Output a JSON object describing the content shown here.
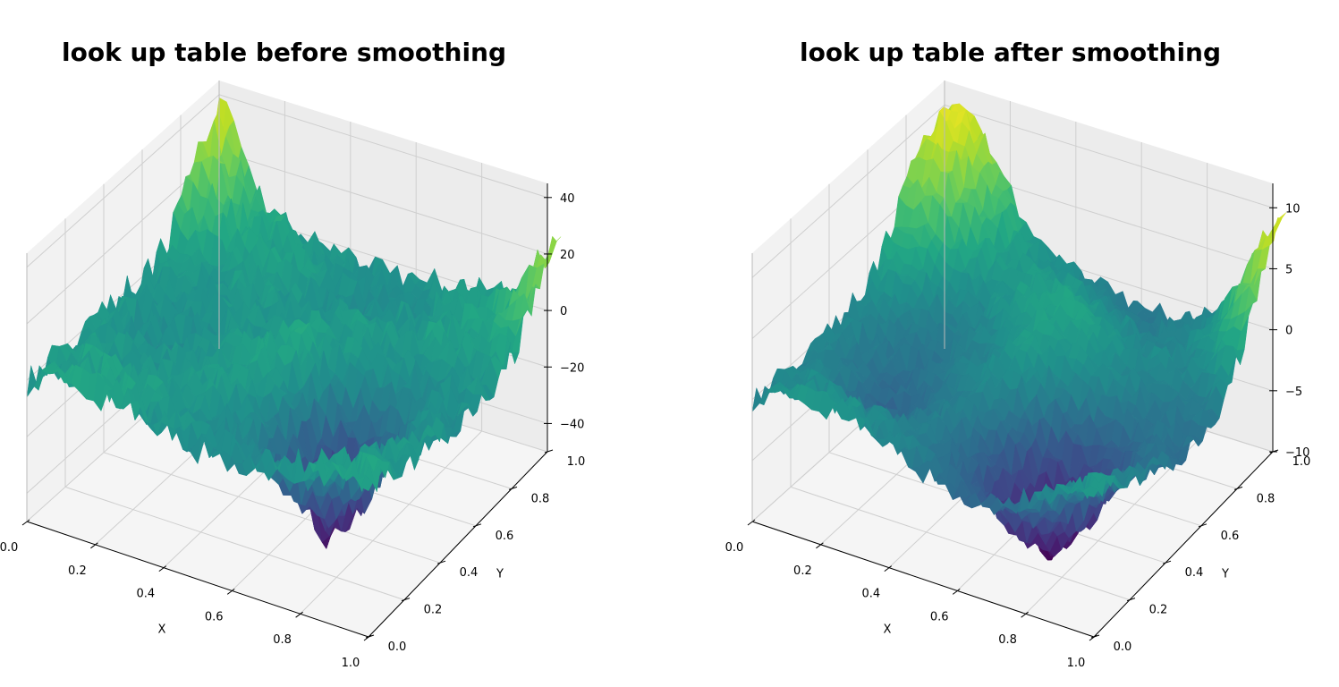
{
  "chart_data": [
    {
      "type": "surface3d",
      "title": "look up table before smoothing",
      "xlabel": "X",
      "ylabel": "Y",
      "zlabel": "",
      "xlim": [
        0,
        1
      ],
      "ylim": [
        0,
        1
      ],
      "zlim": [
        -50,
        45
      ],
      "xticks": [
        "0.0",
        "0.2",
        "0.4",
        "0.6",
        "0.8",
        "1.0"
      ],
      "yticks": [
        "0.0",
        "0.2",
        "0.4",
        "0.6",
        "0.8",
        "1.0"
      ],
      "zticks": [
        "40",
        "20",
        "0",
        "−20",
        "−40"
      ],
      "colormap": "viridis",
      "grid": true,
      "features": [
        {
          "x": 0.0,
          "y": 1.0,
          "z": 38
        },
        {
          "x": 1.0,
          "y": 1.0,
          "z": 30
        },
        {
          "x": 0.7,
          "y": 0.35,
          "z": -45
        },
        {
          "x": 0.5,
          "y": 0.5,
          "z": 0
        }
      ]
    },
    {
      "type": "surface3d",
      "title": "look up table after smoothing",
      "xlabel": "X",
      "ylabel": "Y",
      "zlabel": "",
      "xlim": [
        0,
        1
      ],
      "ylim": [
        0,
        1
      ],
      "zlim": [
        -10,
        12
      ],
      "xticks": [
        "0.0",
        "0.2",
        "0.4",
        "0.6",
        "0.8",
        "1.0"
      ],
      "yticks": [
        "0.0",
        "0.2",
        "0.4",
        "0.6",
        "0.8",
        "1.0"
      ],
      "zticks": [
        "10",
        "5",
        "0",
        "−5",
        "−10"
      ],
      "colormap": "viridis",
      "grid": true,
      "features": [
        {
          "x": 0.0,
          "y": 1.0,
          "z": 11
        },
        {
          "x": 1.0,
          "y": 1.0,
          "z": 10
        },
        {
          "x": 0.7,
          "y": 0.3,
          "z": -9.5
        },
        {
          "x": 0.5,
          "y": 0.5,
          "z": 0
        }
      ]
    }
  ]
}
